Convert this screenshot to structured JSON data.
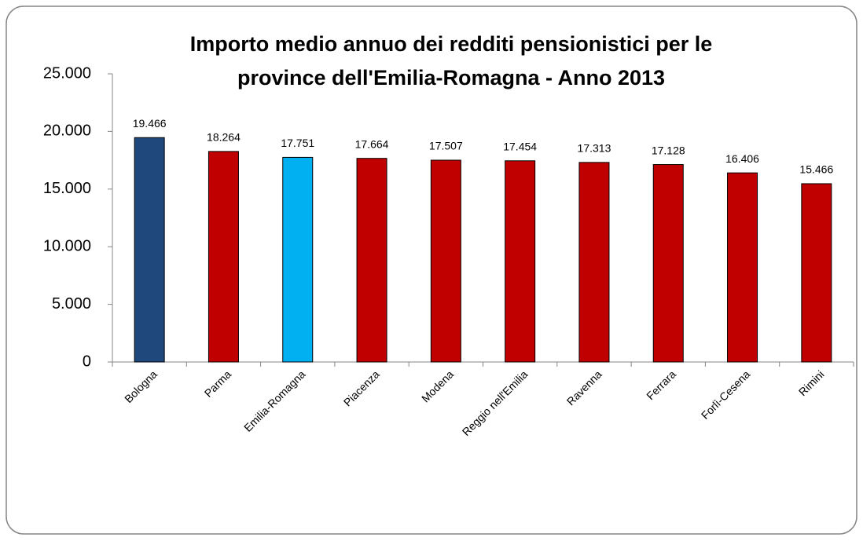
{
  "chart_data": {
    "type": "bar",
    "title": [
      "Importo medio annuo dei redditi pensionistici per le",
      "province dell'Emilia-Romagna  - Anno 2013"
    ],
    "categories": [
      "Bologna",
      "Parma",
      "Emilia-Romagna",
      "Piacenza",
      "Modena",
      "Reggio nell'Emilia",
      "Ravenna",
      "Ferrara",
      "Forlì-Cesena",
      "Rimini"
    ],
    "values": [
      19466,
      18264,
      17751,
      17664,
      17507,
      17454,
      17313,
      17128,
      16406,
      15466
    ],
    "value_labels": [
      "19.466",
      "18.264",
      "17.751",
      "17.664",
      "17.507",
      "17.454",
      "17.313",
      "17.128",
      "16.406",
      "15.466"
    ],
    "colors": [
      "#1f497d",
      "#c00000",
      "#00b0f0",
      "#c00000",
      "#c00000",
      "#c00000",
      "#c00000",
      "#c00000",
      "#c00000",
      "#c00000"
    ],
    "ylim": [
      0,
      25000
    ],
    "yticks": [
      0,
      {
        "value": 5000,
        "label": "5.000"
      },
      {
        "value": 10000,
        "label": "10.000"
      },
      {
        "value": 15000,
        "label": "15.000"
      },
      {
        "value": 20000,
        "label": "20.000"
      },
      {
        "value": 25000,
        "label": "25.000"
      }
    ],
    "grid": false
  }
}
